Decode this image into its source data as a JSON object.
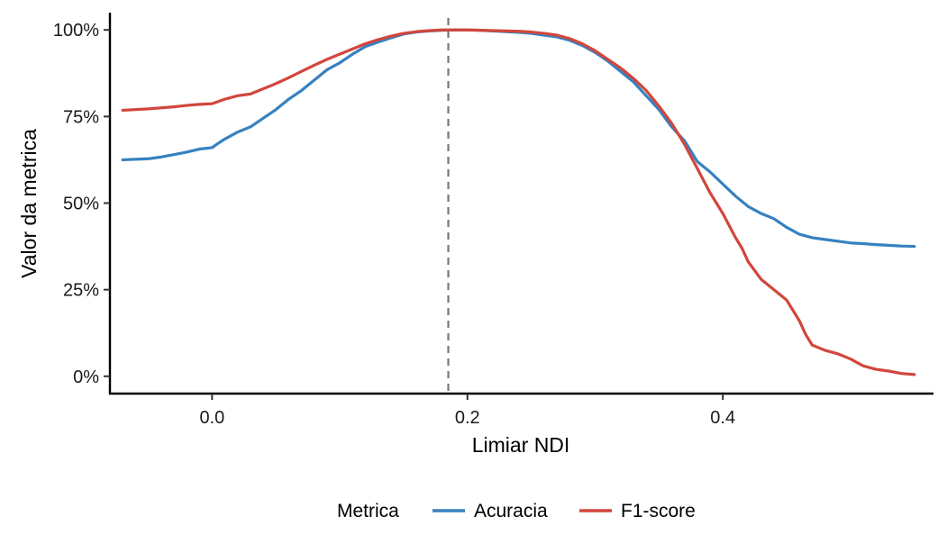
{
  "chart_data": {
    "type": "line",
    "xlabel": "Limiar NDI",
    "ylabel": "Valor da metrica",
    "xlim": [
      -0.08,
      0.565
    ],
    "ylim": [
      -0.05,
      1.05
    ],
    "x_ticks": [
      0.0,
      0.2,
      0.4
    ],
    "x_tick_labels": [
      "0.0",
      "0.2",
      "0.4"
    ],
    "y_ticks": [
      0,
      0.25,
      0.5,
      0.75,
      1.0
    ],
    "y_tick_labels": [
      "0%",
      "25%",
      "50%",
      "75%",
      "100%"
    ],
    "grid": false,
    "threshold_line": {
      "x": 0.185,
      "style": "dashed",
      "color": "#777777"
    },
    "legend": {
      "title": "Metrica",
      "position": "bottom"
    },
    "series": [
      {
        "name": "Acuracia",
        "color": "#3681C0",
        "x": [
          -0.07,
          -0.05,
          -0.04,
          -0.03,
          -0.02,
          -0.01,
          0.0,
          0.005,
          0.01,
          0.02,
          0.03,
          0.04,
          0.05,
          0.06,
          0.07,
          0.08,
          0.09,
          0.1,
          0.11,
          0.12,
          0.13,
          0.14,
          0.15,
          0.16,
          0.17,
          0.18,
          0.19,
          0.2,
          0.21,
          0.22,
          0.23,
          0.24,
          0.25,
          0.26,
          0.27,
          0.28,
          0.29,
          0.3,
          0.31,
          0.32,
          0.33,
          0.34,
          0.35,
          0.36,
          0.37,
          0.38,
          0.39,
          0.4,
          0.41,
          0.42,
          0.43,
          0.44,
          0.45,
          0.46,
          0.47,
          0.48,
          0.49,
          0.5,
          0.51,
          0.52,
          0.53,
          0.54,
          0.55
        ],
        "y": [
          0.625,
          0.628,
          0.633,
          0.64,
          0.647,
          0.656,
          0.66,
          0.673,
          0.685,
          0.705,
          0.72,
          0.745,
          0.77,
          0.8,
          0.825,
          0.855,
          0.885,
          0.905,
          0.93,
          0.952,
          0.965,
          0.977,
          0.988,
          0.994,
          0.997,
          0.999,
          1.0,
          1.0,
          0.999,
          0.997,
          0.995,
          0.993,
          0.99,
          0.985,
          0.98,
          0.97,
          0.955,
          0.935,
          0.91,
          0.88,
          0.85,
          0.81,
          0.77,
          0.72,
          0.68,
          0.62,
          0.59,
          0.555,
          0.52,
          0.49,
          0.47,
          0.455,
          0.43,
          0.41,
          0.4,
          0.395,
          0.39,
          0.385,
          0.383,
          0.38,
          0.378,
          0.376,
          0.375
        ]
      },
      {
        "name": "F1-score",
        "color": "#D2463C",
        "x": [
          -0.07,
          -0.05,
          -0.04,
          -0.03,
          -0.02,
          -0.01,
          0.0,
          0.01,
          0.02,
          0.03,
          0.04,
          0.05,
          0.06,
          0.07,
          0.08,
          0.09,
          0.1,
          0.11,
          0.12,
          0.13,
          0.14,
          0.15,
          0.16,
          0.17,
          0.18,
          0.19,
          0.2,
          0.21,
          0.22,
          0.23,
          0.24,
          0.25,
          0.26,
          0.27,
          0.28,
          0.29,
          0.3,
          0.31,
          0.32,
          0.33,
          0.34,
          0.35,
          0.36,
          0.37,
          0.375,
          0.38,
          0.39,
          0.4,
          0.41,
          0.415,
          0.42,
          0.43,
          0.44,
          0.45,
          0.46,
          0.465,
          0.47,
          0.48,
          0.49,
          0.5,
          0.51,
          0.52,
          0.53,
          0.54,
          0.55
        ],
        "y": [
          0.768,
          0.772,
          0.775,
          0.778,
          0.782,
          0.785,
          0.787,
          0.8,
          0.81,
          0.815,
          0.83,
          0.845,
          0.862,
          0.88,
          0.898,
          0.915,
          0.93,
          0.945,
          0.96,
          0.972,
          0.982,
          0.99,
          0.995,
          0.998,
          1.0,
          1.0,
          1.0,
          0.999,
          0.998,
          0.997,
          0.996,
          0.994,
          0.99,
          0.985,
          0.975,
          0.96,
          0.94,
          0.915,
          0.89,
          0.86,
          0.825,
          0.78,
          0.73,
          0.67,
          0.635,
          0.6,
          0.53,
          0.47,
          0.4,
          0.37,
          0.33,
          0.28,
          0.25,
          0.22,
          0.16,
          0.12,
          0.09,
          0.075,
          0.065,
          0.05,
          0.03,
          0.02,
          0.015,
          0.008,
          0.005
        ]
      }
    ]
  }
}
